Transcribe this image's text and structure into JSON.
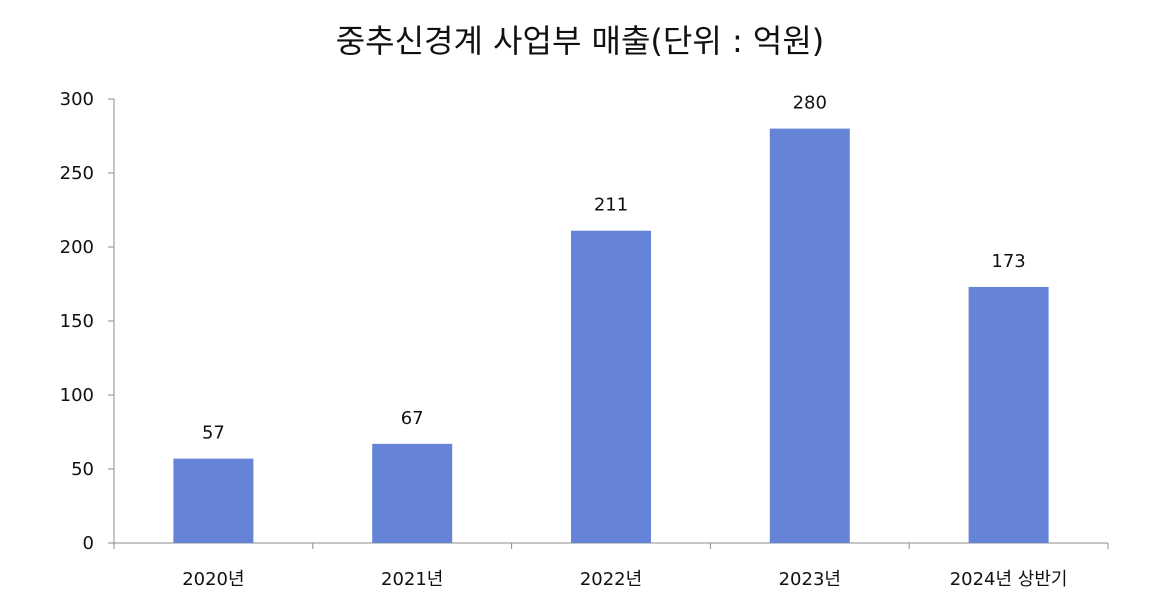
{
  "chart_data": {
    "type": "bar",
    "title": "중추신경계 사업부 매출(단위 : 억원)",
    "categories": [
      "2020년",
      "2021년",
      "2022년",
      "2023년",
      "2024년 상반기"
    ],
    "values": [
      57,
      67,
      211,
      280,
      173
    ],
    "data_labels": [
      "57",
      "67",
      "211",
      "280",
      "173"
    ],
    "ylim": [
      0,
      300
    ],
    "yticks": [
      0,
      50,
      100,
      150,
      200,
      250,
      300
    ],
    "ytick_labels": [
      "0",
      "50",
      "100",
      "150",
      "200",
      "250",
      "300"
    ],
    "bar_color": "#6584d8",
    "axis_color": "#8c8c8c",
    "grid": false,
    "legend": "none"
  }
}
